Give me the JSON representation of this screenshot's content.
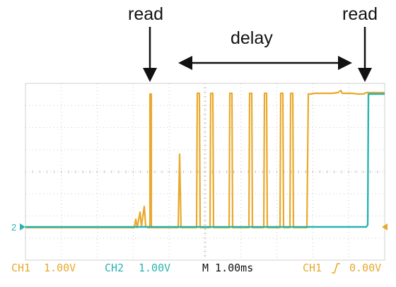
{
  "annotations": {
    "read_left": "read",
    "read_right": "read",
    "delay": "delay"
  },
  "status_bar": {
    "ch1_label": "CH1",
    "ch1_volts": "1.00V",
    "ch2_label": "CH2",
    "ch2_volts": "1.00V",
    "timebase": "M 1.00ms",
    "trigger_source": "CH1",
    "trigger_slope_icon": "rising-edge-icon",
    "trigger_level": "0.00V"
  },
  "markers": {
    "ch2_ground_label": "2"
  },
  "colors": {
    "ch1": "#E8A92C",
    "ch2": "#2BB3B0",
    "grid": "#c8c8c8",
    "timebase_text": "#111111"
  }
}
